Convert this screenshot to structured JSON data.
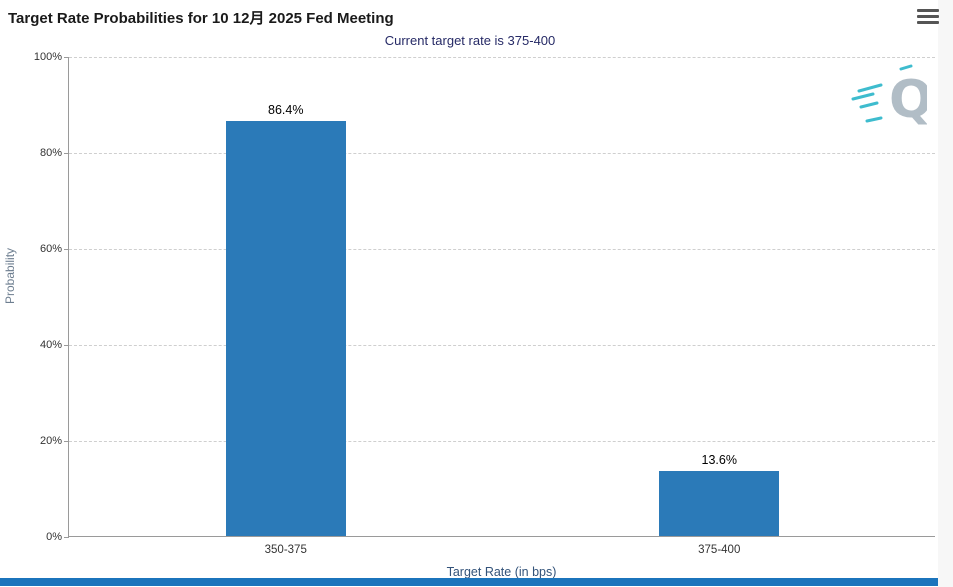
{
  "header": {
    "title": "Target Rate Probabilities for 10 12月 2025 Fed Meeting",
    "menu_icon": "hamburger-icon"
  },
  "subtitle": "Current target rate is 375-400",
  "chart_data": {
    "type": "bar",
    "title": "Target Rate Probabilities for 10 12月 2025 Fed Meeting",
    "subtitle": "Current target rate is 375-400",
    "categories": [
      "350-375",
      "375-400"
    ],
    "values": [
      86.4,
      13.6
    ],
    "value_labels": [
      "86.4%",
      "13.6%"
    ],
    "xlabel": "Target Rate (in bps)",
    "ylabel": "Probability",
    "ylim": [
      0,
      100
    ],
    "ytick_values": [
      0,
      20,
      40,
      60,
      80,
      100
    ],
    "ytick_labels": [
      "0%",
      "20%",
      "40%",
      "60%",
      "80%",
      "100%"
    ],
    "grid": "horizontal-dashed",
    "legend": "none",
    "bar_color": "#2b7ab8",
    "watermark": "Q"
  },
  "colors": {
    "bar": "#2b7ab8",
    "subtitle_text": "#262a66",
    "x_axis_title_text": "#33537a",
    "y_axis_title_text": "#6d7e90",
    "footer_bar": "#1b74bc",
    "watermark_teal": "#2ab5c9",
    "watermark_gray": "#a9b6c0"
  }
}
